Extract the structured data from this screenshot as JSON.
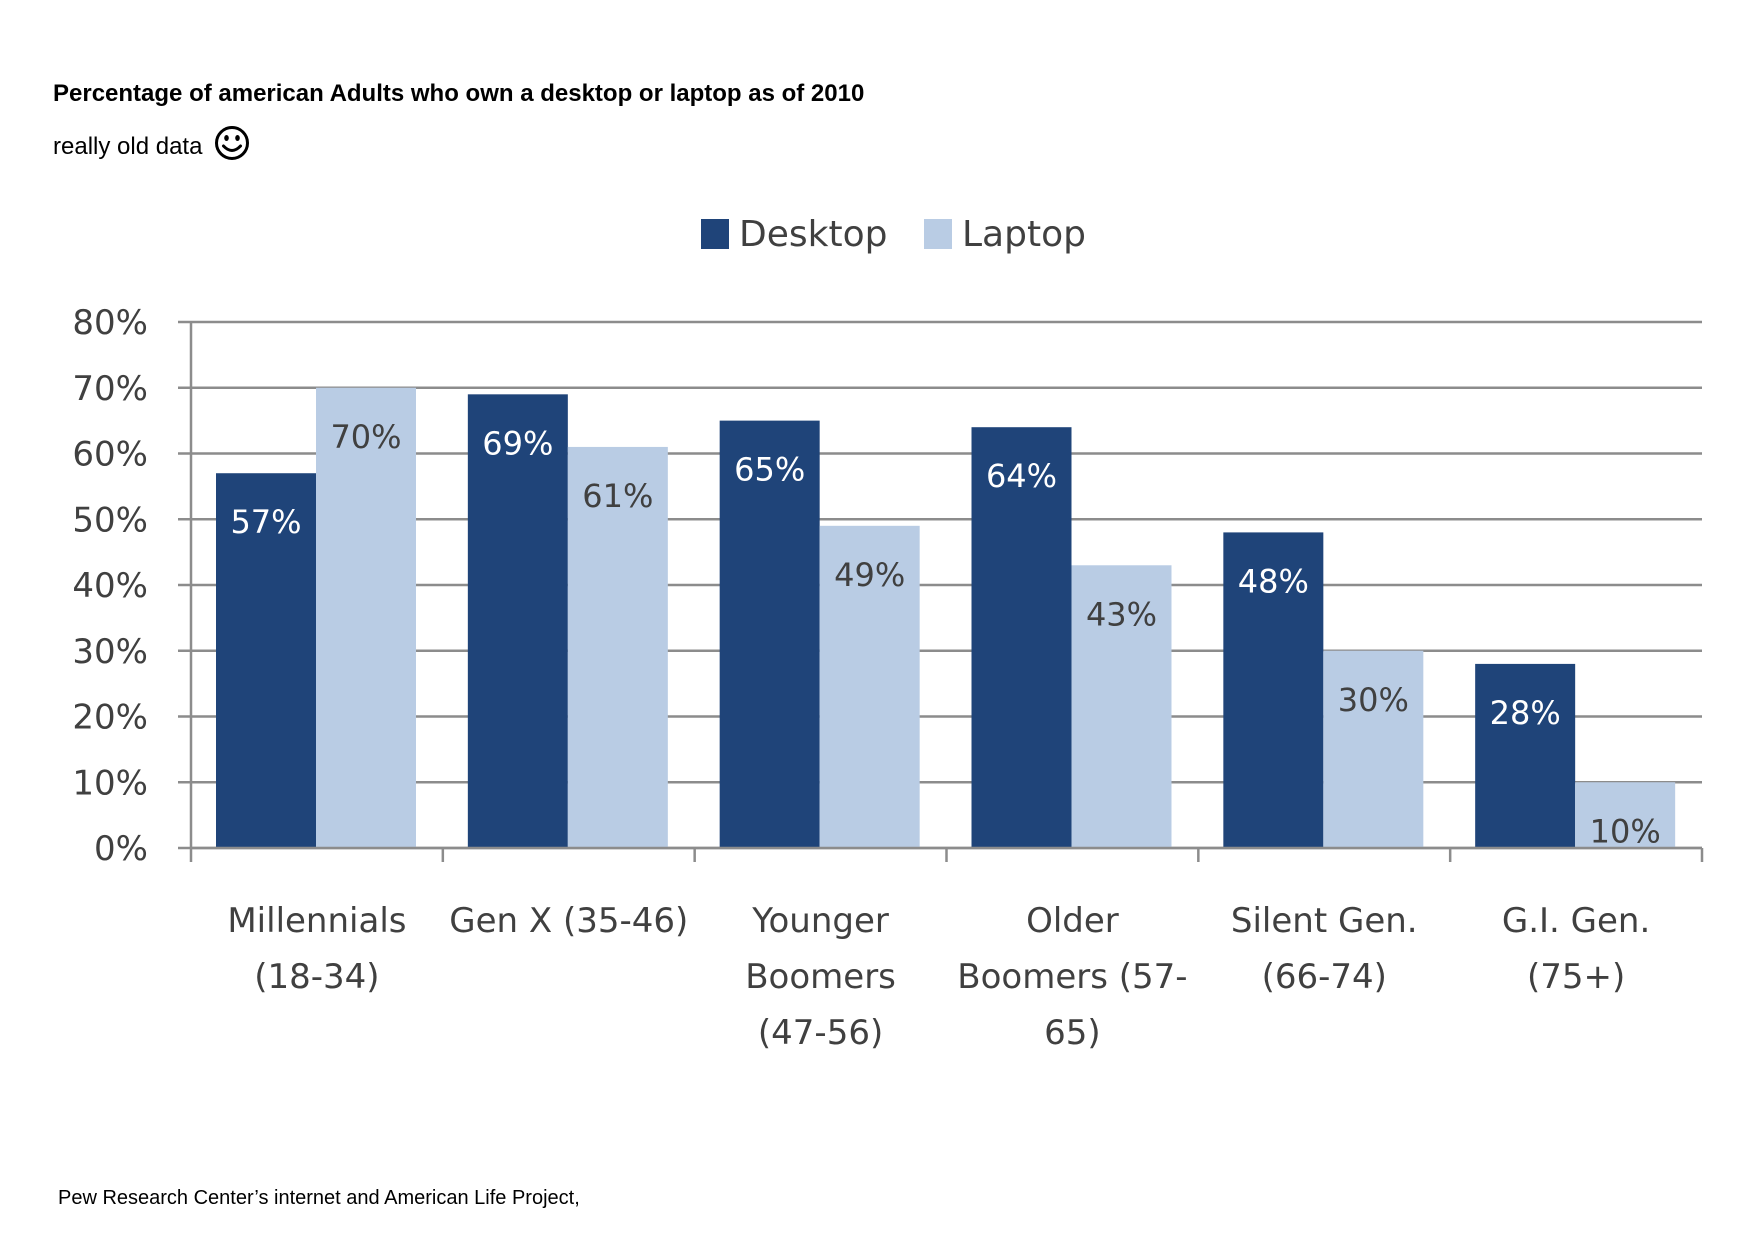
{
  "header": {
    "title": "Percentage of american Adults who own a desktop or laptop as of 2010",
    "subtitle": "really old data",
    "subtitle_icon": "smiley-face-icon"
  },
  "footer": {
    "source": "Pew Research Center’s internet and American Life Project,"
  },
  "chart_data": {
    "type": "bar",
    "categories": [
      [
        "Millennials",
        "(18-34)"
      ],
      [
        "Gen X (35-46)"
      ],
      [
        "Younger",
        "Boomers",
        "(47-56)"
      ],
      [
        "Older",
        "Boomers (57-",
        "65)"
      ],
      [
        "Silent Gen.",
        "(66-74)"
      ],
      [
        "G.I. Gen.",
        "(75+)"
      ]
    ],
    "series": [
      {
        "name": "Desktop",
        "color": "#1f4479",
        "values": [
          57,
          69,
          65,
          64,
          48,
          28
        ],
        "labels": [
          "57%",
          "69%",
          "65%",
          "64%",
          "48%",
          "28%"
        ]
      },
      {
        "name": "Laptop",
        "color": "#b9cce4",
        "values": [
          70,
          61,
          49,
          43,
          30,
          10
        ],
        "labels": [
          "70%",
          "61%",
          "49%",
          "43%",
          "30%",
          "10%"
        ]
      }
    ],
    "yticks": [
      0,
      10,
      20,
      30,
      40,
      50,
      60,
      70,
      80
    ],
    "ytick_labels": [
      "0%",
      "10%",
      "20%",
      "30%",
      "40%",
      "50%",
      "60%",
      "70%",
      "80%"
    ],
    "ylim": [
      0,
      80
    ],
    "grid": true,
    "legend_position": "top-center",
    "colors": {
      "gridline": "#8c8c8c",
      "axis_text": "#404040",
      "label_on_dark": "#ffffff",
      "label_on_light": "#404040"
    }
  }
}
